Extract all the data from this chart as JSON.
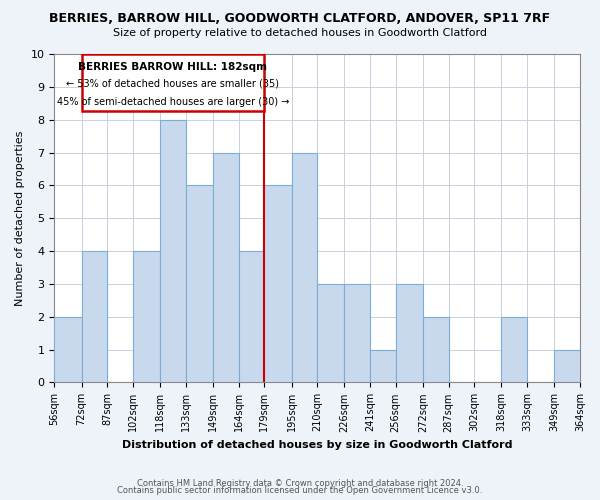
{
  "title": "BERRIES, BARROW HILL, GOODWORTH CLATFORD, ANDOVER, SP11 7RF",
  "subtitle": "Size of property relative to detached houses in Goodworth Clatford",
  "xlabel": "Distribution of detached houses by size in Goodworth Clatford",
  "ylabel": "Number of detached properties",
  "bin_edges": [
    56,
    72,
    87,
    102,
    118,
    133,
    149,
    164,
    179,
    195,
    210,
    226,
    241,
    256,
    272,
    287,
    302,
    318,
    333,
    349,
    364
  ],
  "bar_heights": [
    2,
    4,
    0,
    4,
    8,
    6,
    7,
    4,
    6,
    7,
    3,
    3,
    1,
    3,
    2,
    0,
    0,
    2,
    0,
    1
  ],
  "bar_color": "#c8d9ee",
  "bar_edge_color": "#7aaed4",
  "reference_line_x": 179,
  "reference_line_color": "#cc0000",
  "annotation_title": "BERRIES BARROW HILL: 182sqm",
  "annotation_line1": "← 53% of detached houses are smaller (35)",
  "annotation_line2": "45% of semi-detached houses are larger (30) →",
  "ylim": [
    0,
    10
  ],
  "yticks": [
    0,
    1,
    2,
    3,
    4,
    5,
    6,
    7,
    8,
    9,
    10
  ],
  "xtick_labels": [
    "56sqm",
    "72sqm",
    "87sqm",
    "102sqm",
    "118sqm",
    "133sqm",
    "149sqm",
    "164sqm",
    "179sqm",
    "195sqm",
    "210sqm",
    "226sqm",
    "241sqm",
    "256sqm",
    "272sqm",
    "287sqm",
    "302sqm",
    "318sqm",
    "333sqm",
    "349sqm",
    "364sqm"
  ],
  "footer_line1": "Contains HM Land Registry data © Crown copyright and database right 2024.",
  "footer_line2": "Contains public sector information licensed under the Open Government Licence v3.0.",
  "bg_color": "#eef2f9",
  "plot_bg_color": "#ffffff"
}
